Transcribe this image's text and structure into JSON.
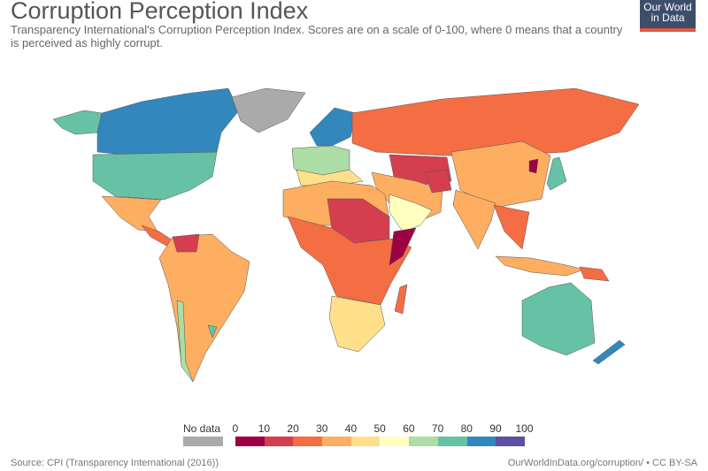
{
  "title": "Corruption Perception Index",
  "subtitle": "Transparency International's Corruption Perception Index. Scores are on a scale of 0-100, where 0 means that a country is perceived as highly corrupt.",
  "logo": {
    "line1": "Our World",
    "line2": "in Data"
  },
  "legend": {
    "no_data": "No data",
    "no_data_color": "#aaaaaa",
    "ticks": [
      "0",
      "10",
      "20",
      "30",
      "40",
      "50",
      "60",
      "70",
      "80",
      "90",
      "100"
    ],
    "colors": [
      "#9e0142",
      "#d53e4f",
      "#f46d43",
      "#fdae61",
      "#fee08b",
      "#ffffbf",
      "#abdda4",
      "#66c2a5",
      "#3288bd",
      "#5e4fa2"
    ]
  },
  "source": "Source: CPI (Transparency International (2016))",
  "credit": "OurWorldInData.org/corruption/ • CC BY-SA"
}
